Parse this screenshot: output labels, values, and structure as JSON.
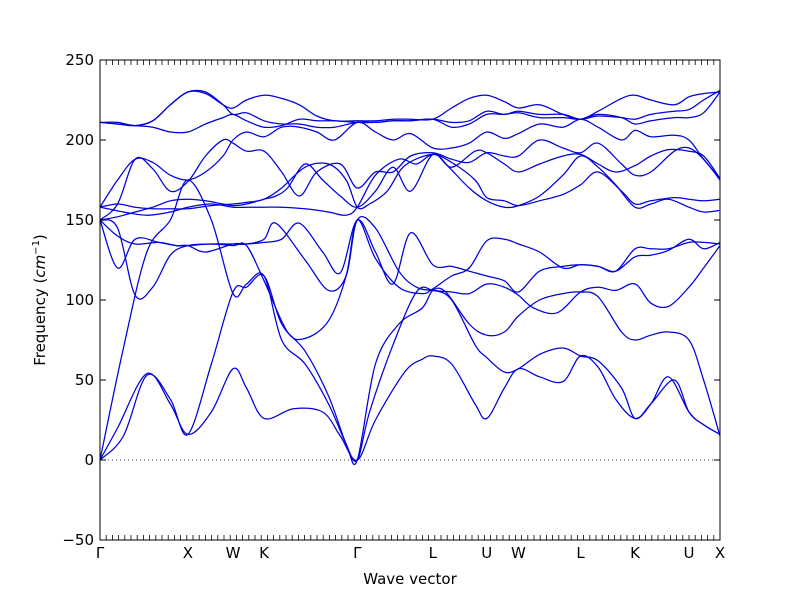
{
  "chart_data": {
    "type": "line",
    "title": "",
    "xlabel": "Wave vector",
    "ylabel": "Frequency (cm⁻¹)",
    "ylabel_text": "Frequency (",
    "ylabel_unit": "cm",
    "ylabel_exp": "−1",
    "ylabel_close": ")",
    "ylim": [
      -50,
      250
    ],
    "yticks": [
      -50,
      0,
      50,
      100,
      150,
      200,
      250
    ],
    "xlim": [
      0,
      10.58
    ],
    "high_symmetry_points": [
      {
        "label": "Γ",
        "x": 0.0
      },
      {
        "label": "X",
        "x": 1.5
      },
      {
        "label": "W",
        "x": 2.27
      },
      {
        "label": "K",
        "x": 2.8
      },
      {
        "label": "Γ",
        "x": 4.39
      },
      {
        "label": "L",
        "x": 5.68
      },
      {
        "label": "U",
        "x": 6.6
      },
      {
        "label": "W",
        "x": 7.14
      },
      {
        "label": "L",
        "x": 8.2
      },
      {
        "label": "K",
        "x": 9.13
      },
      {
        "label": "U",
        "x": 10.05
      },
      {
        "label": "X",
        "x": 10.58
      }
    ],
    "zero_line": 0,
    "line_color": "#0000dd",
    "series": [
      {
        "x": [
          0,
          0.3,
          0.8,
          1.2,
          1.5,
          1.9,
          2.27,
          2.5,
          2.8,
          3.3,
          3.8,
          4.1,
          4.39,
          4.7,
          5.2,
          5.5,
          5.68,
          6.0,
          6.4,
          6.6,
          6.9,
          7.14,
          7.5,
          7.9,
          8.2,
          8.5,
          8.8,
          9.13,
          9.4,
          9.7,
          10.05,
          10.3,
          10.58
        ],
        "y": [
          0,
          20,
          54,
          35,
          16,
          30,
          57,
          45,
          26,
          32,
          30,
          15,
          0,
          25,
          55,
          63,
          65,
          60,
          35,
          26,
          45,
          57,
          52,
          49,
          65,
          58,
          38,
          26,
          35,
          52,
          30,
          22,
          16
        ]
      },
      {
        "x": [
          0,
          0.4,
          0.8,
          1.2,
          1.5,
          1.9,
          2.27,
          2.5,
          2.8,
          3.1,
          3.5,
          3.9,
          4.2,
          4.39,
          4.6,
          5.0,
          5.4,
          5.68,
          6.0,
          6.4,
          6.6,
          6.9,
          7.14,
          7.5,
          7.9,
          8.2,
          8.5,
          8.9,
          9.13,
          9.4,
          9.8,
          10.05,
          10.3,
          10.58
        ],
        "y": [
          0,
          15,
          53,
          38,
          16,
          60,
          105,
          108,
          115,
          85,
          68,
          40,
          10,
          0,
          30,
          72,
          105,
          106,
          100,
          72,
          64,
          55,
          57,
          66,
          70,
          65,
          62,
          45,
          26,
          35,
          50,
          30,
          22,
          16
        ]
      },
      {
        "x": [
          0,
          0.4,
          0.8,
          1.2,
          1.5,
          1.9,
          2.27,
          2.5,
          2.8,
          3.1,
          3.5,
          3.9,
          4.2,
          4.39,
          4.7,
          5.1,
          5.5,
          5.68,
          5.9,
          6.3,
          6.6,
          6.9,
          7.14,
          7.5,
          7.9,
          8.2,
          8.5,
          8.9,
          9.13,
          9.4,
          9.7,
          10.05,
          10.3,
          10.58
        ],
        "y": [
          0,
          70,
          130,
          150,
          175,
          150,
          104,
          110,
          115,
          75,
          60,
          35,
          10,
          0,
          60,
          85,
          95,
          106,
          105,
          85,
          78,
          80,
          90,
          100,
          104,
          105,
          102,
          80,
          75,
          78,
          80,
          75,
          50,
          15
        ]
      },
      {
        "x": [
          0,
          0.3,
          0.6,
          0.9,
          1.2,
          1.5,
          1.9,
          2.27,
          2.5,
          2.8,
          3.0,
          3.5,
          3.9,
          4.2,
          4.39,
          4.7,
          5.1,
          5.4,
          5.68,
          6.0,
          6.3,
          6.6,
          6.9,
          7.14,
          7.4,
          7.8,
          8.2,
          8.5,
          8.8,
          9.13,
          9.4,
          9.7,
          10.05,
          10.3,
          10.58
        ],
        "y": [
          150,
          145,
          103,
          108,
          128,
          134,
          135,
          135,
          135,
          138,
          148,
          125,
          106,
          115,
          150,
          145,
          118,
          108,
          106,
          105,
          104,
          110,
          108,
          103,
          95,
          92,
          105,
          108,
          106,
          110,
          98,
          96,
          108,
          120,
          134
        ]
      },
      {
        "x": [
          0,
          0.3,
          0.6,
          1.0,
          1.3,
          1.5,
          1.9,
          2.27,
          2.5,
          2.8,
          3.2,
          3.5,
          3.9,
          4.2,
          4.39,
          4.7,
          5.1,
          5.5,
          5.68,
          6.0,
          6.3,
          6.6,
          6.9,
          7.14,
          7.5,
          7.9,
          8.2,
          8.5,
          8.8,
          9.13,
          9.4,
          9.7,
          10.05,
          10.3,
          10.58
        ],
        "y": [
          150,
          140,
          135,
          136,
          134,
          134,
          135,
          134,
          134,
          112,
          80,
          76,
          87,
          115,
          150,
          126,
          108,
          104,
          107,
          115,
          120,
          137,
          138,
          135,
          130,
          120,
          122,
          121,
          118,
          127,
          128,
          131,
          138,
          132,
          136
        ]
      },
      {
        "x": [
          0,
          0.3,
          0.6,
          1.0,
          1.3,
          1.5,
          1.8,
          2.27,
          2.5,
          2.8,
          3.1,
          3.4,
          3.8,
          4.1,
          4.39,
          4.7,
          5.0,
          5.3,
          5.68,
          6.0,
          6.3,
          6.6,
          6.9,
          7.14,
          7.5,
          7.9,
          8.2,
          8.5,
          8.8,
          9.13,
          9.4,
          9.7,
          10.05,
          10.3,
          10.58
        ],
        "y": [
          150,
          120,
          138,
          136,
          134,
          134,
          130,
          135,
          135,
          136,
          138,
          148,
          130,
          117,
          150,
          130,
          110,
          142,
          122,
          121,
          118,
          115,
          112,
          105,
          118,
          121,
          122,
          121,
          118,
          132,
          132,
          132,
          136,
          136,
          135
        ]
      },
      {
        "x": [
          0,
          0.3,
          0.6,
          0.9,
          1.2,
          1.5,
          1.9,
          2.27,
          2.5,
          2.8,
          3.1,
          3.5,
          3.9,
          4.2,
          4.39,
          4.6,
          4.9,
          5.2,
          5.68,
          5.9,
          6.3,
          6.6,
          6.9,
          7.14,
          7.5,
          7.9,
          8.2,
          8.5,
          8.8,
          9.13,
          9.4,
          9.7,
          10.05,
          10.3,
          10.58
        ],
        "y": [
          158,
          160,
          158,
          157,
          157,
          157,
          159,
          160,
          161,
          163,
          170,
          183,
          185,
          175,
          158,
          160,
          168,
          184,
          191,
          185,
          170,
          162,
          158,
          159,
          165,
          178,
          190,
          183,
          172,
          158,
          160,
          163,
          158,
          155,
          156
        ]
      },
      {
        "x": [
          0,
          0.4,
          0.8,
          1.2,
          1.5,
          1.9,
          2.27,
          2.5,
          2.8,
          3.1,
          3.5,
          3.9,
          4.2,
          4.39,
          4.7,
          5.1,
          5.4,
          5.68,
          6.0,
          6.4,
          6.6,
          6.9,
          7.14,
          7.5,
          7.9,
          8.2,
          8.5,
          8.9,
          9.13,
          9.4,
          9.8,
          10.05,
          10.3,
          10.58
        ],
        "y": [
          158,
          155,
          153,
          155,
          158,
          160,
          158,
          158,
          158,
          158,
          157,
          155,
          153,
          158,
          178,
          188,
          185,
          191,
          186,
          175,
          164,
          162,
          159,
          162,
          166,
          172,
          180,
          168,
          160,
          162,
          164,
          163,
          162,
          163
        ]
      },
      {
        "x": [
          0,
          0.3,
          0.6,
          0.9,
          1.2,
          1.5,
          1.8,
          2.1,
          2.27,
          2.5,
          2.8,
          3.0,
          3.2,
          3.5,
          3.8,
          4.1,
          4.39,
          4.7,
          5.0,
          5.3,
          5.68,
          6.0,
          6.4,
          6.6,
          6.9,
          7.14,
          7.5,
          7.9,
          8.2,
          8.5,
          8.8,
          9.13,
          9.4,
          9.7,
          10.05,
          10.3,
          10.58
        ],
        "y": [
          150,
          152,
          155,
          158,
          162,
          163,
          162,
          160,
          159,
          160,
          163,
          165,
          170,
          185,
          175,
          165,
          158,
          168,
          183,
          168,
          191,
          183,
          193,
          192,
          185,
          180,
          185,
          190,
          191,
          185,
          180,
          184,
          190,
          194,
          193,
          190,
          176
        ]
      },
      {
        "x": [
          0,
          0.3,
          0.6,
          0.9,
          1.2,
          1.5,
          1.8,
          2.1,
          2.27,
          2.5,
          2.8,
          3.1,
          3.4,
          3.7,
          4.1,
          4.39,
          4.7,
          5.0,
          5.3,
          5.68,
          6.0,
          6.3,
          6.6,
          6.9,
          7.14,
          7.5,
          7.9,
          8.2,
          8.5,
          8.9,
          9.13,
          9.4,
          9.8,
          10.05,
          10.3,
          10.58
        ],
        "y": [
          150,
          160,
          188,
          182,
          168,
          174,
          190,
          200,
          198,
          193,
          193,
          180,
          165,
          180,
          185,
          170,
          180,
          180,
          190,
          192,
          188,
          186,
          192,
          190,
          190,
          200,
          195,
          192,
          198,
          185,
          178,
          180,
          193,
          195,
          188,
          175
        ]
      },
      {
        "x": [
          0,
          0.3,
          0.6,
          0.9,
          1.2,
          1.5,
          1.8,
          2.1,
          2.27,
          2.5,
          2.8,
          3.1,
          3.4,
          3.7,
          4.0,
          4.39,
          4.7,
          5.0,
          5.3,
          5.68,
          6.0,
          6.3,
          6.6,
          6.9,
          7.14,
          7.5,
          7.9,
          8.2,
          8.5,
          8.9,
          9.13,
          9.4,
          9.8,
          10.05,
          10.3,
          10.58
        ],
        "y": [
          158,
          175,
          188,
          186,
          178,
          175,
          180,
          190,
          200,
          205,
          202,
          208,
          208,
          205,
          200,
          211,
          205,
          200,
          204,
          195,
          195,
          198,
          205,
          201,
          204,
          210,
          208,
          213,
          208,
          200,
          206,
          202,
          203,
          200,
          188,
          176
        ]
      },
      {
        "x": [
          0,
          0.3,
          0.6,
          0.9,
          1.2,
          1.5,
          1.8,
          2.1,
          2.27,
          2.5,
          2.8,
          3.1,
          3.4,
          3.7,
          4.0,
          4.39,
          4.7,
          5.0,
          5.3,
          5.68,
          6.0,
          6.3,
          6.6,
          6.9,
          7.14,
          7.5,
          7.9,
          8.2,
          8.5,
          8.9,
          9.13,
          9.4,
          9.8,
          10.05,
          10.3,
          10.58
        ],
        "y": [
          211,
          210,
          209,
          212,
          222,
          230,
          229,
          222,
          220,
          225,
          228,
          226,
          222,
          215,
          212,
          212,
          212,
          213,
          213,
          213,
          220,
          226,
          228,
          224,
          220,
          222,
          216,
          213,
          218,
          226,
          228,
          225,
          222,
          227,
          229,
          230
        ]
      },
      {
        "x": [
          0,
          0.3,
          0.6,
          0.9,
          1.2,
          1.5,
          1.8,
          2.1,
          2.27,
          2.5,
          2.8,
          3.1,
          3.4,
          3.7,
          4.0,
          4.39,
          4.7,
          5.0,
          5.3,
          5.68,
          6.0,
          6.3,
          6.6,
          6.9,
          7.14,
          7.5,
          7.9,
          8.2,
          8.5,
          8.9,
          9.13,
          9.4,
          9.8,
          10.05,
          10.3,
          10.58
        ],
        "y": [
          211,
          211,
          209,
          212,
          222,
          230,
          230,
          222,
          216,
          217,
          212,
          210,
          210,
          208,
          208,
          211,
          211,
          212,
          212,
          213,
          208,
          210,
          216,
          216,
          217,
          214,
          214,
          213,
          216,
          214,
          210,
          212,
          214,
          214,
          217,
          230
        ]
      },
      {
        "x": [
          0,
          0.3,
          0.6,
          0.9,
          1.2,
          1.5,
          1.8,
          2.1,
          2.27,
          2.5,
          2.8,
          3.1,
          3.4,
          3.7,
          4.0,
          4.39,
          4.7,
          5.0,
          5.3,
          5.68,
          6.0,
          6.3,
          6.6,
          6.9,
          7.14,
          7.5,
          7.9,
          8.2,
          8.5,
          8.9,
          9.13,
          9.4,
          9.8,
          10.05,
          10.3,
          10.58
        ],
        "y": [
          211,
          210,
          209,
          208,
          205,
          205,
          210,
          214,
          216,
          212,
          208,
          209,
          213,
          212,
          212,
          211,
          211,
          212,
          212,
          213,
          211,
          212,
          218,
          216,
          218,
          216,
          216,
          213,
          215,
          214,
          213,
          216,
          218,
          219,
          225,
          231
        ]
      }
    ]
  }
}
